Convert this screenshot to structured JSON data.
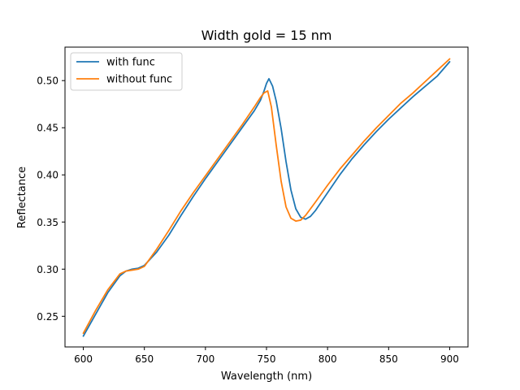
{
  "chart_data": {
    "type": "line",
    "title": "Width gold = 15 nm",
    "xlabel": "Wavelength (nm)",
    "ylabel": "Reflectance",
    "xlim": [
      585,
      915
    ],
    "ylim": [
      0.2175,
      0.5355
    ],
    "xticks": [
      600,
      650,
      700,
      750,
      800,
      850,
      900
    ],
    "yticks": [
      0.25,
      0.3,
      0.35,
      0.4,
      0.45,
      0.5
    ],
    "xtick_labels": [
      "600",
      "650",
      "700",
      "750",
      "800",
      "850",
      "900"
    ],
    "ytick_labels": [
      "0.25",
      "0.30",
      "0.35",
      "0.40",
      "0.45",
      "0.50"
    ],
    "grid": false,
    "legend": "top-left",
    "series": [
      {
        "name": "with func",
        "color": "#1f77b4",
        "x": [
          600,
          610,
          620,
          630,
          635,
          640,
          645,
          650,
          660,
          670,
          680,
          690,
          700,
          710,
          720,
          730,
          740,
          745,
          748,
          750,
          752,
          755,
          758,
          762,
          766,
          770,
          774,
          778,
          782,
          786,
          790,
          800,
          810,
          820,
          830,
          840,
          850,
          860,
          870,
          880,
          890,
          900
        ],
        "y": [
          0.229,
          0.252,
          0.275,
          0.293,
          0.298,
          0.3,
          0.301,
          0.304,
          0.318,
          0.336,
          0.357,
          0.377,
          0.396,
          0.414,
          0.432,
          0.45,
          0.468,
          0.479,
          0.489,
          0.497,
          0.502,
          0.494,
          0.478,
          0.449,
          0.414,
          0.384,
          0.364,
          0.355,
          0.353,
          0.356,
          0.362,
          0.381,
          0.4,
          0.417,
          0.432,
          0.446,
          0.459,
          0.471,
          0.483,
          0.494,
          0.505,
          0.52
        ]
      },
      {
        "name": "without func",
        "color": "#ff7f0e",
        "x": [
          600,
          610,
          620,
          630,
          635,
          640,
          645,
          650,
          660,
          670,
          680,
          690,
          700,
          710,
          720,
          730,
          740,
          745,
          748,
          751,
          754,
          758,
          762,
          766,
          770,
          774,
          778,
          782,
          786,
          790,
          800,
          810,
          820,
          830,
          840,
          850,
          860,
          870,
          880,
          890,
          900
        ],
        "y": [
          0.232,
          0.256,
          0.278,
          0.295,
          0.298,
          0.299,
          0.3,
          0.303,
          0.321,
          0.341,
          0.362,
          0.381,
          0.399,
          0.417,
          0.435,
          0.453,
          0.472,
          0.482,
          0.487,
          0.489,
          0.472,
          0.431,
          0.393,
          0.366,
          0.354,
          0.351,
          0.352,
          0.357,
          0.364,
          0.371,
          0.389,
          0.406,
          0.421,
          0.436,
          0.45,
          0.463,
          0.476,
          0.487,
          0.499,
          0.511,
          0.523
        ]
      }
    ]
  }
}
